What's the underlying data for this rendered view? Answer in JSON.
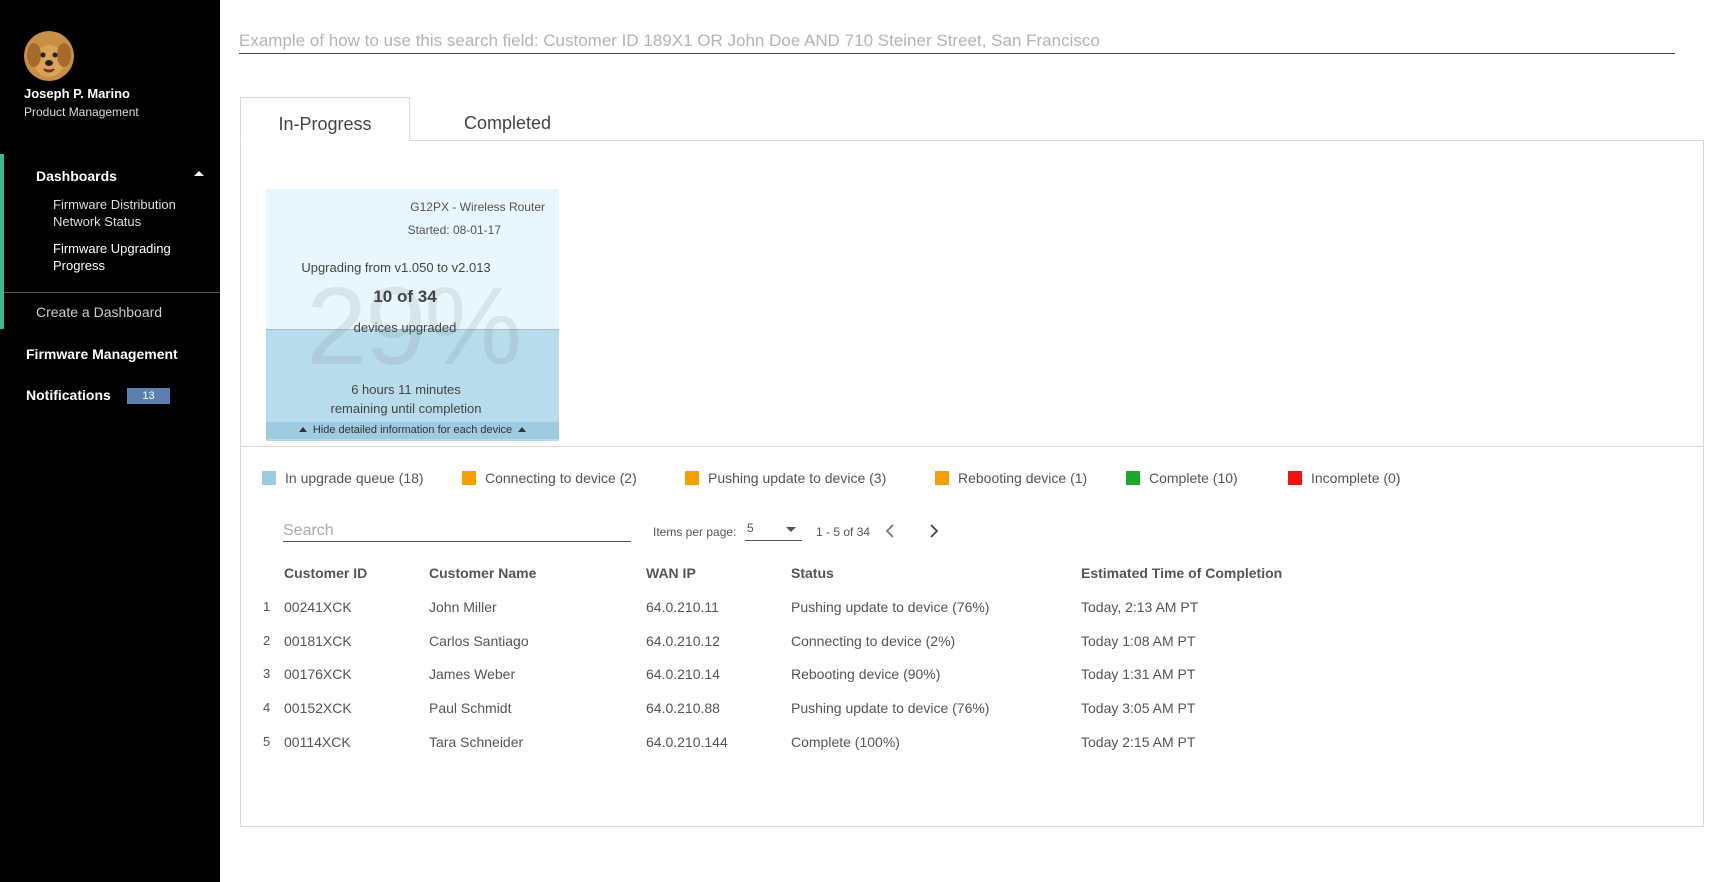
{
  "user": {
    "name": "Joseph P. Marino",
    "role": "Product Management"
  },
  "sidebar": {
    "dashboards_label": "Dashboards",
    "sub_items": [
      {
        "label": "Firmware Distribution Network Status"
      },
      {
        "label": "Firmware Upgrading Progress"
      }
    ],
    "create_label": "Create a Dashboard",
    "firmware_label": "Firmware Management",
    "notifications_label": "Notifications",
    "notifications_count": "13"
  },
  "search": {
    "placeholder": "Example of how to use this search field: Customer ID 189X1 OR John Doe AND 710 Steiner Street, San Francisco"
  },
  "tabs": [
    {
      "label": "In-Progress"
    },
    {
      "label": "Completed"
    }
  ],
  "card": {
    "device": "G12PX - Wireless Router",
    "started": "Started: 08-01-17",
    "upgrading": "Upgrading from v1.050 to v2.013",
    "count": "10 of 34",
    "count_label": "devices upgraded",
    "percent": "29%",
    "remaining_line1": "6 hours 11 minutes",
    "remaining_line2": "remaining until completion",
    "hide_label": "Hide detailed information for each device"
  },
  "colors": {
    "accent": "#3bb98b",
    "queue": "#9ecae1",
    "connecting": "#f5a000",
    "pushing": "#f5a000",
    "rebooting": "#f5a000",
    "complete": "#1aa82e",
    "incomplete": "#f21212"
  },
  "legend": [
    {
      "label": "In upgrade queue (18)"
    },
    {
      "label": "Connecting to device (2)"
    },
    {
      "label": "Pushing update to device (3)"
    },
    {
      "label": "Rebooting device (1)"
    },
    {
      "label": "Complete (10)"
    },
    {
      "label": "Incomplete (0)"
    }
  ],
  "table": {
    "search_placeholder": "Search",
    "items_per_page_label": "Items per page:",
    "items_per_page_value": "5",
    "range": "1 - 5 of 34",
    "columns": [
      "Customer ID",
      "Customer Name",
      "WAN IP",
      "Status",
      "Estimated Time of Completion"
    ],
    "rows": [
      {
        "idx": "1",
        "id": "00241XCK",
        "name": "John Miller",
        "ip": "64.0.210.11",
        "status": "Pushing update to device (76%)",
        "eta": "Today, 2:13 AM PT"
      },
      {
        "idx": "2",
        "id": "00181XCK",
        "name": "Carlos Santiago",
        "ip": "64.0.210.12",
        "status": "Connecting to device (2%)",
        "eta": "Today 1:08 AM PT"
      },
      {
        "idx": "3",
        "id": "00176XCK",
        "name": "James Weber",
        "ip": "64.0.210.14",
        "status": "Rebooting device (90%)",
        "eta": "Today 1:31 AM PT"
      },
      {
        "idx": "4",
        "id": "00152XCK",
        "name": "Paul Schmidt",
        "ip": "64.0.210.88",
        "status": "Pushing update to device (76%)",
        "eta": "Today 3:05 AM PT"
      },
      {
        "idx": "5",
        "id": "00114XCK",
        "name": "Tara Schneider",
        "ip": "64.0.210.144",
        "status": "Complete (100%)",
        "eta": "Today 2:15 AM PT"
      }
    ]
  }
}
